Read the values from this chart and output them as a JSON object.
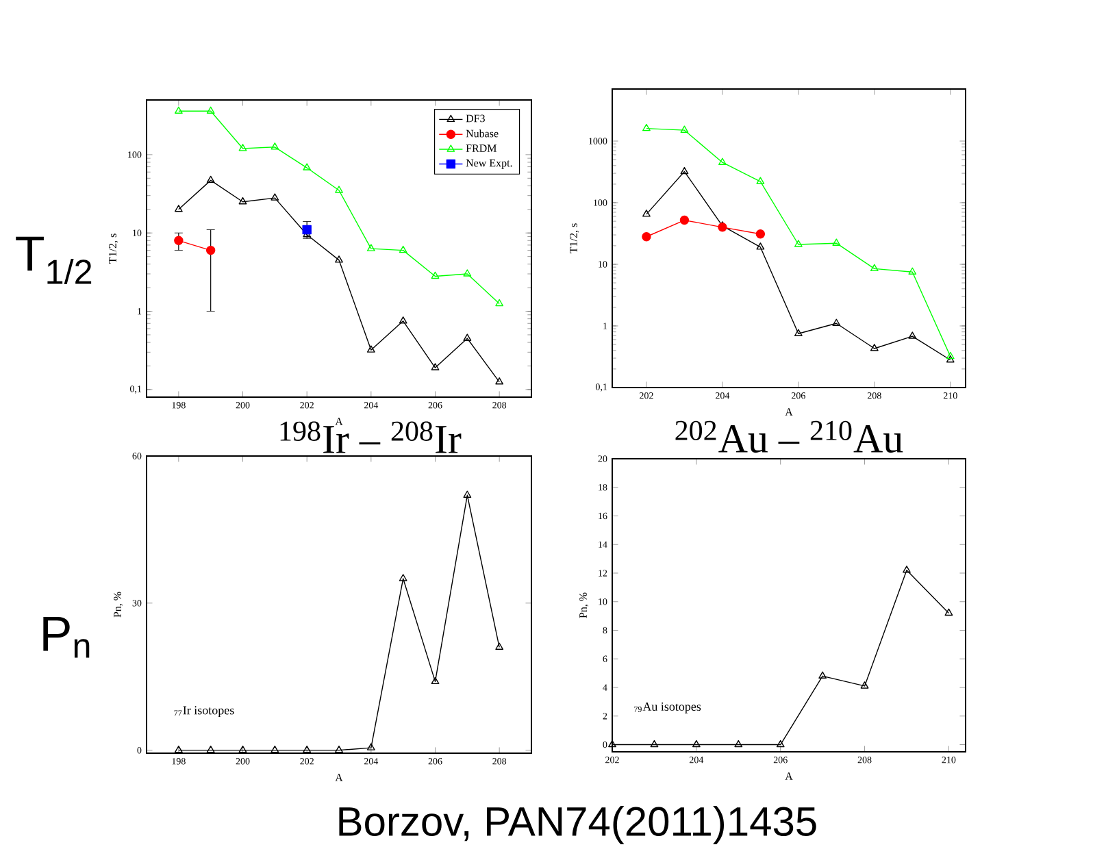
{
  "chart_data": [
    {
      "type": "line",
      "xlabel": "A",
      "ylabel": "T1/2, s",
      "log": "y",
      "legend": "top right",
      "x": [
        198,
        199,
        200,
        201,
        202,
        203,
        204,
        205,
        206,
        207,
        208
      ],
      "xlim": [
        197,
        209
      ],
      "xticks": [
        198,
        200,
        202,
        204,
        206,
        208
      ],
      "ylim": [
        0.08,
        500
      ],
      "yticks": [
        {
          "value": 0.1,
          "label": "0,1"
        },
        1,
        10,
        100
      ],
      "series": [
        {
          "name": "DF3",
          "color": "#000000",
          "marker": "triangle",
          "values": [
            20,
            47,
            25,
            28,
            9.5,
            4.5,
            0.32,
            0.75,
            0.19,
            0.45,
            0.125
          ]
        },
        {
          "name": "Nubase",
          "color": "#ff0000",
          "marker": "circle",
          "x": [
            198,
            199
          ],
          "values": [
            8,
            6
          ],
          "errors": [
            [
              6,
              10
            ],
            [
              1,
              11
            ]
          ]
        },
        {
          "name": "FRDM",
          "color": "#00ff00",
          "marker": "triangle",
          "values": [
            360,
            360,
            120,
            125,
            68,
            35,
            6.3,
            6,
            2.8,
            3,
            1.25
          ]
        },
        {
          "name": "New Expt.",
          "color": "#0000ff",
          "marker": "square",
          "x": [
            202
          ],
          "values": [
            11
          ],
          "errors": [
            [
              8.5,
              14
            ]
          ]
        }
      ],
      "annotations": [
        "T$_{1/2}$",
        "$^{198}$Ir – $^{208}$Ir"
      ]
    },
    {
      "type": "line",
      "xlabel": "A",
      "ylabel": "T1/2, s",
      "log": "y",
      "x": [
        202,
        203,
        204,
        205,
        206,
        207,
        208,
        209,
        210
      ],
      "xlim": [
        201.1,
        210.4
      ],
      "xticks": [
        202,
        204,
        206,
        208,
        210
      ],
      "ylim": [
        0.1,
        7000
      ],
      "yticks": [
        {
          "value": 0.1,
          "label": "0,1"
        },
        1,
        10,
        100,
        1000
      ],
      "series": [
        {
          "color": "#000000",
          "marker": "triangle",
          "values": [
            65,
            320,
            42,
            19,
            0.75,
            1.1,
            0.43,
            0.68,
            0.28
          ]
        },
        {
          "color": "#ff0000",
          "marker": "circle",
          "x": [
            202,
            203,
            204,
            205
          ],
          "values": [
            28,
            52,
            40,
            31
          ]
        },
        {
          "color": "#00ff00",
          "marker": "triangle",
          "values": [
            1600,
            1500,
            450,
            220,
            21,
            22,
            8.5,
            7.5,
            0.32
          ]
        }
      ],
      "annotations": [
        "$^{202}$Au – $^{210}$Au"
      ]
    },
    {
      "type": "line",
      "xlabel": "A",
      "ylabel": "Pn, %",
      "x": [
        198,
        199,
        200,
        201,
        202,
        203,
        204,
        205,
        206,
        207,
        208
      ],
      "xlim": [
        197,
        209
      ],
      "xticks": [
        198,
        200,
        202,
        204,
        206,
        208
      ],
      "ylim": [
        -0.6,
        60
      ],
      "yticks": [
        0,
        30,
        60
      ],
      "series": [
        {
          "color": "#000000",
          "marker": "triangle",
          "values": [
            0,
            0,
            0,
            0,
            0,
            0,
            0.5,
            35,
            14,
            52,
            21
          ]
        }
      ],
      "annotations": [
        "P$_{n}$",
        "$_{77}$Ir isotopes"
      ]
    },
    {
      "type": "line",
      "xlabel": "A",
      "ylabel": "Pn, %",
      "x": [
        202,
        203,
        204,
        205,
        206,
        207,
        208,
        209,
        210
      ],
      "xlim": [
        202,
        210.4
      ],
      "xticks": [
        202,
        204,
        206,
        208,
        210
      ],
      "ylim": [
        -0.5,
        20
      ],
      "yticks": [
        0,
        2,
        4,
        6,
        8,
        10,
        12,
        14,
        16,
        18,
        20
      ],
      "series": [
        {
          "color": "#000000",
          "marker": "triangle",
          "values": [
            0,
            0,
            0,
            0,
            0,
            4.8,
            4.1,
            12.2,
            9.2
          ]
        }
      ],
      "annotations": [
        "$_{79}$Au isotopes",
        "Borzov, PAN74(2011)1435"
      ]
    }
  ]
}
